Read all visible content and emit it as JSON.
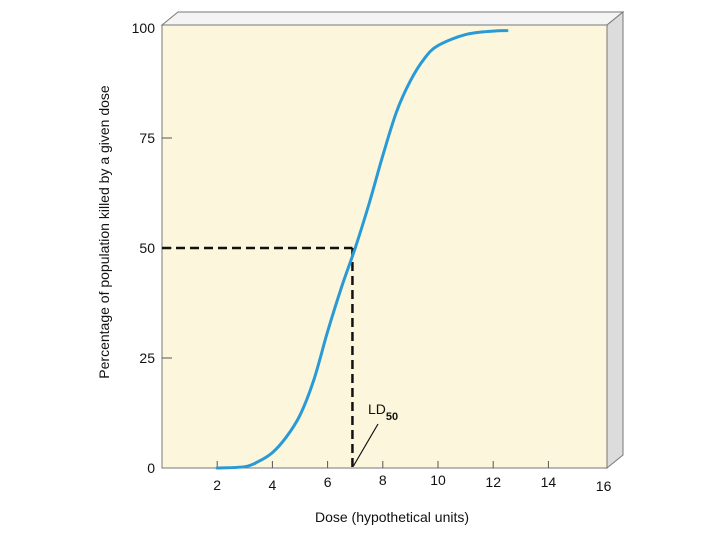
{
  "chart_data": {
    "type": "line",
    "title": "",
    "xlabel": "Dose (hypothetical units)",
    "ylabel": "Percentage of population killed by a given dose",
    "xlim": [
      0,
      16
    ],
    "ylim": [
      0,
      100
    ],
    "x_ticks": [
      {
        "value": 2,
        "label": "2"
      },
      {
        "value": 4,
        "label": "4"
      },
      {
        "value": 6,
        "label": "6"
      },
      {
        "value": 8,
        "label": "8"
      },
      {
        "value": 10,
        "label": "10"
      },
      {
        "value": 12,
        "label": "12"
      },
      {
        "value": 14,
        "label": "14"
      },
      {
        "value": 16,
        "label": "16"
      }
    ],
    "y_ticks": [
      {
        "value": 0,
        "label": "0"
      },
      {
        "value": 25,
        "label": "25"
      },
      {
        "value": 50,
        "label": "50"
      },
      {
        "value": 75,
        "label": "75"
      },
      {
        "value": 100,
        "label": "100"
      }
    ],
    "series": [
      {
        "color": "#2a9ad6",
        "x": [
          2.0,
          3.0,
          3.5,
          4.0,
          4.5,
          5.0,
          5.5,
          6.0,
          6.5,
          7.0,
          7.5,
          8.0,
          8.5,
          9.0,
          9.5,
          10.0,
          11.0,
          12.0,
          12.5
        ],
        "y": [
          0.0,
          0.3,
          1.5,
          3.5,
          7.0,
          12.0,
          20.0,
          31.0,
          41.0,
          50.0,
          60.0,
          71.0,
          81.0,
          88.0,
          93.0,
          96.0,
          98.5,
          99.3,
          99.4
        ]
      }
    ],
    "annotations": [
      {
        "type": "reference-lines",
        "x": 6.9,
        "y": 50,
        "style": "dashed"
      },
      {
        "type": "label",
        "text": "LD",
        "subscript": "50",
        "points_to": {
          "x": 6.9,
          "y": 0
        }
      }
    ],
    "grid": false,
    "background_color": "#fcf7dc",
    "frame_3d": true
  }
}
